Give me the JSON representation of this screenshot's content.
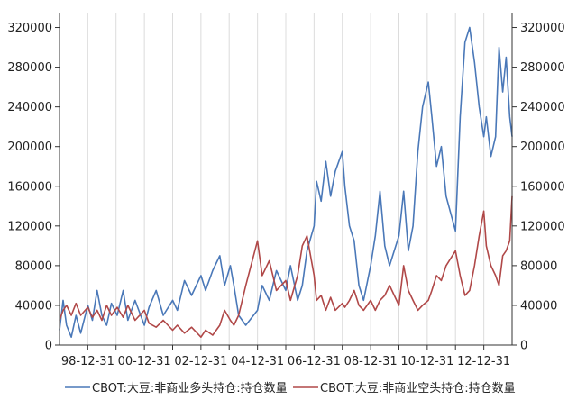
{
  "chart_data": {
    "type": "line",
    "title": "",
    "xlabel": "",
    "ylabel": "",
    "x_tick_labels": [
      "98-12-31",
      "00-12-31",
      "02-12-31",
      "04-12-31",
      "06-12-31",
      "08-12-31",
      "10-12-31",
      "12-12-31"
    ],
    "y_tick_labels": [
      "0",
      "40000",
      "80000",
      "120000",
      "160000",
      "200000",
      "240000",
      "280000",
      "320000"
    ],
    "ylim": [
      0,
      335000
    ],
    "x_range": [
      "1997-12-31",
      "2013-12-31"
    ],
    "grid": "vertical",
    "legend_position": "bottom",
    "series": [
      {
        "name": "CBOT:大豆:非商业多头持仓:持仓数量",
        "color": "#4a78b8",
        "points": [
          [
            "1997-12-31",
            15000
          ],
          [
            "1998-02-15",
            45000
          ],
          [
            "1998-04-01",
            20000
          ],
          [
            "1998-06-01",
            8000
          ],
          [
            "1998-08-01",
            30000
          ],
          [
            "1998-10-01",
            12000
          ],
          [
            "1998-12-31",
            40000
          ],
          [
            "1999-03-01",
            25000
          ],
          [
            "1999-05-01",
            55000
          ],
          [
            "1999-07-01",
            30000
          ],
          [
            "1999-09-01",
            20000
          ],
          [
            "1999-11-01",
            42000
          ],
          [
            "2000-01-15",
            30000
          ],
          [
            "2000-04-01",
            55000
          ],
          [
            "2000-06-01",
            25000
          ],
          [
            "2000-09-01",
            45000
          ],
          [
            "2000-12-31",
            20000
          ],
          [
            "2001-03-01",
            38000
          ],
          [
            "2001-06-01",
            55000
          ],
          [
            "2001-09-01",
            30000
          ],
          [
            "2001-12-31",
            45000
          ],
          [
            "2002-03-01",
            35000
          ],
          [
            "2002-06-01",
            65000
          ],
          [
            "2002-09-01",
            50000
          ],
          [
            "2002-12-31",
            70000
          ],
          [
            "2003-03-01",
            55000
          ],
          [
            "2003-06-01",
            75000
          ],
          [
            "2003-09-01",
            90000
          ],
          [
            "2003-11-01",
            60000
          ],
          [
            "2004-01-15",
            80000
          ],
          [
            "2004-03-01",
            60000
          ],
          [
            "2004-05-01",
            30000
          ],
          [
            "2004-08-01",
            20000
          ],
          [
            "2004-12-31",
            35000
          ],
          [
            "2005-03-01",
            60000
          ],
          [
            "2005-06-01",
            45000
          ],
          [
            "2005-09-01",
            75000
          ],
          [
            "2005-12-31",
            55000
          ],
          [
            "2006-03-01",
            80000
          ],
          [
            "2006-06-01",
            45000
          ],
          [
            "2006-08-01",
            60000
          ],
          [
            "2006-10-01",
            95000
          ],
          [
            "2006-12-31",
            120000
          ],
          [
            "2007-02-01",
            165000
          ],
          [
            "2007-04-01",
            145000
          ],
          [
            "2007-06-01",
            185000
          ],
          [
            "2007-08-01",
            150000
          ],
          [
            "2007-10-01",
            175000
          ],
          [
            "2007-12-31",
            195000
          ],
          [
            "2008-02-01",
            160000
          ],
          [
            "2008-04-01",
            120000
          ],
          [
            "2008-06-01",
            105000
          ],
          [
            "2008-08-01",
            60000
          ],
          [
            "2008-10-01",
            45000
          ],
          [
            "2008-12-31",
            80000
          ],
          [
            "2009-03-01",
            110000
          ],
          [
            "2009-05-01",
            155000
          ],
          [
            "2009-07-01",
            100000
          ],
          [
            "2009-09-01",
            80000
          ],
          [
            "2009-12-31",
            110000
          ],
          [
            "2010-03-01",
            155000
          ],
          [
            "2010-05-01",
            95000
          ],
          [
            "2010-07-01",
            120000
          ],
          [
            "2010-09-01",
            195000
          ],
          [
            "2010-11-01",
            240000
          ],
          [
            "2011-01-15",
            265000
          ],
          [
            "2011-03-01",
            230000
          ],
          [
            "2011-05-01",
            180000
          ],
          [
            "2011-07-01",
            200000
          ],
          [
            "2011-09-01",
            150000
          ],
          [
            "2011-12-31",
            115000
          ],
          [
            "2012-03-01",
            230000
          ],
          [
            "2012-05-01",
            305000
          ],
          [
            "2012-07-01",
            320000
          ],
          [
            "2012-09-01",
            285000
          ],
          [
            "2012-11-01",
            240000
          ],
          [
            "2012-12-31",
            210000
          ],
          [
            "2013-02-01",
            230000
          ],
          [
            "2013-04-01",
            190000
          ],
          [
            "2013-06-01",
            210000
          ],
          [
            "2013-07-15",
            300000
          ],
          [
            "2013-09-01",
            255000
          ],
          [
            "2013-10-15",
            290000
          ],
          [
            "2013-12-01",
            230000
          ],
          [
            "2013-12-31",
            210000
          ]
        ]
      },
      {
        "name": "CBOT:大豆:非商业空头持仓:持仓数量",
        "color": "#b04848",
        "points": [
          [
            "1997-12-31",
            25000
          ],
          [
            "1998-02-15",
            35000
          ],
          [
            "1998-04-01",
            40000
          ],
          [
            "1998-06-01",
            30000
          ],
          [
            "1998-08-01",
            42000
          ],
          [
            "1998-10-01",
            30000
          ],
          [
            "1998-12-31",
            38000
          ],
          [
            "1999-03-01",
            28000
          ],
          [
            "1999-05-01",
            35000
          ],
          [
            "1999-07-01",
            25000
          ],
          [
            "1999-09-01",
            40000
          ],
          [
            "1999-11-01",
            30000
          ],
          [
            "2000-01-15",
            38000
          ],
          [
            "2000-04-01",
            28000
          ],
          [
            "2000-06-01",
            40000
          ],
          [
            "2000-09-01",
            25000
          ],
          [
            "2000-12-31",
            35000
          ],
          [
            "2001-03-01",
            22000
          ],
          [
            "2001-06-01",
            18000
          ],
          [
            "2001-09-01",
            25000
          ],
          [
            "2001-12-31",
            15000
          ],
          [
            "2002-03-01",
            20000
          ],
          [
            "2002-06-01",
            12000
          ],
          [
            "2002-09-01",
            18000
          ],
          [
            "2002-12-31",
            8000
          ],
          [
            "2003-03-01",
            15000
          ],
          [
            "2003-06-01",
            10000
          ],
          [
            "2003-09-01",
            20000
          ],
          [
            "2003-11-01",
            35000
          ],
          [
            "2004-01-15",
            25000
          ],
          [
            "2004-03-01",
            20000
          ],
          [
            "2004-05-01",
            30000
          ],
          [
            "2004-08-01",
            60000
          ],
          [
            "2004-12-31",
            105000
          ],
          [
            "2005-03-01",
            70000
          ],
          [
            "2005-06-01",
            85000
          ],
          [
            "2005-09-01",
            55000
          ],
          [
            "2005-12-31",
            65000
          ],
          [
            "2006-03-01",
            45000
          ],
          [
            "2006-06-01",
            70000
          ],
          [
            "2006-08-01",
            100000
          ],
          [
            "2006-10-01",
            110000
          ],
          [
            "2006-12-31",
            70000
          ],
          [
            "2007-02-01",
            45000
          ],
          [
            "2007-04-01",
            50000
          ],
          [
            "2007-06-01",
            35000
          ],
          [
            "2007-08-01",
            48000
          ],
          [
            "2007-10-01",
            35000
          ],
          [
            "2007-12-31",
            42000
          ],
          [
            "2008-02-01",
            38000
          ],
          [
            "2008-04-01",
            45000
          ],
          [
            "2008-06-01",
            55000
          ],
          [
            "2008-08-01",
            40000
          ],
          [
            "2008-10-01",
            35000
          ],
          [
            "2008-12-31",
            45000
          ],
          [
            "2009-03-01",
            35000
          ],
          [
            "2009-05-01",
            45000
          ],
          [
            "2009-07-01",
            50000
          ],
          [
            "2009-09-01",
            60000
          ],
          [
            "2009-12-31",
            40000
          ],
          [
            "2010-03-01",
            80000
          ],
          [
            "2010-05-01",
            55000
          ],
          [
            "2010-07-01",
            45000
          ],
          [
            "2010-09-01",
            35000
          ],
          [
            "2010-11-01",
            40000
          ],
          [
            "2011-01-15",
            45000
          ],
          [
            "2011-03-01",
            55000
          ],
          [
            "2011-05-01",
            70000
          ],
          [
            "2011-07-01",
            65000
          ],
          [
            "2011-09-01",
            80000
          ],
          [
            "2011-12-31",
            95000
          ],
          [
            "2012-03-01",
            70000
          ],
          [
            "2012-05-01",
            50000
          ],
          [
            "2012-07-01",
            55000
          ],
          [
            "2012-09-01",
            80000
          ],
          [
            "2012-11-01",
            110000
          ],
          [
            "2012-12-31",
            135000
          ],
          [
            "2013-02-01",
            100000
          ],
          [
            "2013-04-01",
            80000
          ],
          [
            "2013-06-01",
            70000
          ],
          [
            "2013-07-15",
            60000
          ],
          [
            "2013-09-01",
            90000
          ],
          [
            "2013-10-15",
            95000
          ],
          [
            "2013-12-01",
            105000
          ],
          [
            "2013-12-31",
            150000
          ]
        ]
      }
    ]
  }
}
